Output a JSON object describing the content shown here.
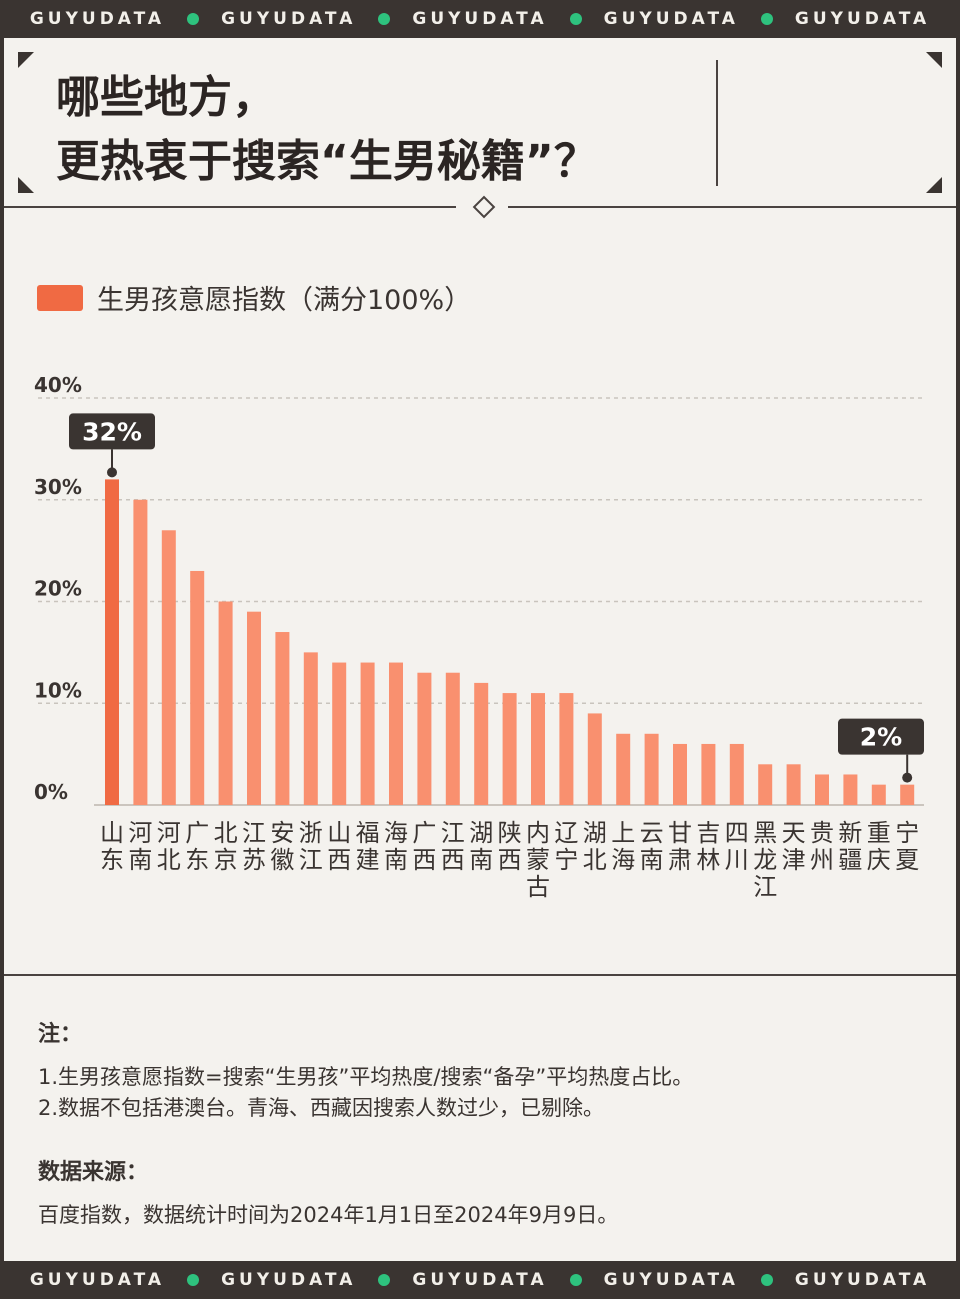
{
  "bands": {
    "word": "GUYUDATA",
    "top": [
      "GUYUDATA",
      "GUYUDATA",
      "GUYUDATA",
      "GUYUDATA",
      "GUYUDATA"
    ],
    "bottom": [
      "GUYUDATA",
      "GUYUDATA",
      "GUYUDATA",
      "GUYUDATA",
      "GUYUDATA"
    ]
  },
  "title": {
    "line1": "哪些地方，",
    "line2": "更热衷于搜索“生男秘籍”？"
  },
  "colors": {
    "bar": "#f9906f",
    "bar_highlight": "#f06a43",
    "label_bg": "#3a3431",
    "grid": "#c9c4bd"
  },
  "chart_data": {
    "type": "bar",
    "legend": "生男孩意愿指数（满分100%）",
    "categories": [
      "山东",
      "河南",
      "河北",
      "广东",
      "北京",
      "江苏",
      "安徽",
      "浙江",
      "山西",
      "福建",
      "海南",
      "广西",
      "江西",
      "湖南",
      "陕西",
      "内蒙古",
      "辽宁",
      "湖北",
      "上海",
      "云南",
      "甘肃",
      "吉林",
      "四川",
      "黑龙江",
      "天津",
      "贵州",
      "新疆",
      "重庆",
      "宁夏"
    ],
    "values": [
      32,
      30,
      27,
      23,
      20,
      19,
      17,
      15,
      14,
      14,
      14,
      13,
      13,
      12,
      11,
      11,
      11,
      9,
      7,
      7,
      6,
      6,
      6,
      4,
      4,
      3,
      3,
      2,
      2
    ],
    "ylim": [
      0,
      40
    ],
    "yticks": [
      "0%",
      "10%",
      "20%",
      "30%",
      "40%"
    ],
    "grid": true,
    "annotations": [
      {
        "category": "山东",
        "text": "32%"
      },
      {
        "category": "宁夏",
        "text": "2%"
      }
    ]
  },
  "notes": {
    "heading": "注：",
    "items": [
      "1.生男孩意愿指数=搜索“生男孩”平均热度/搜索“备孕”平均热度占比。",
      "2.数据不包括港澳台。青海、西藏因搜索人数过少，已剔除。"
    ],
    "source_heading": "数据来源：",
    "source_text": "百度指数，数据统计时间为2024年1月1日至2024年9月9日。"
  }
}
